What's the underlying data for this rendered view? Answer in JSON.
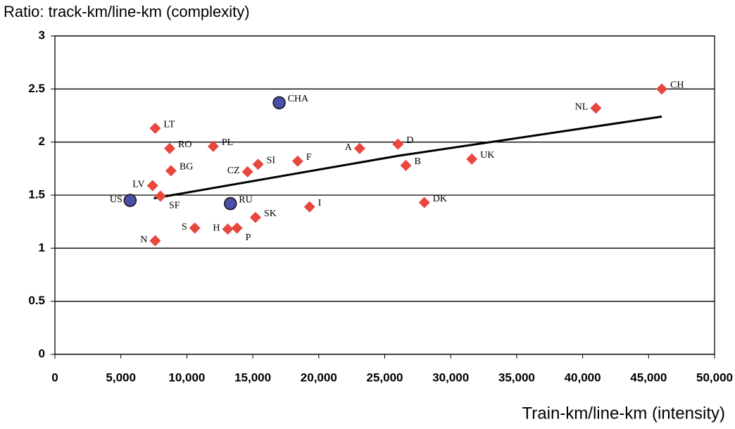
{
  "chart_data": {
    "type": "scatter",
    "title": "Ratio: track-km/line-km (complexity)",
    "x_label": "Train-km/line-km (intensity)",
    "xlim": [
      0,
      50000
    ],
    "ylim": [
      0,
      3
    ],
    "xticks": [
      0,
      {
        "value": 5000,
        "label": "5,000"
      },
      {
        "value": 10000,
        "label": "10,000"
      },
      {
        "value": 15000,
        "label": "15,000"
      },
      {
        "value": 20000,
        "label": "20,000"
      },
      {
        "value": 25000,
        "label": "25,000"
      },
      {
        "value": 30000,
        "label": "30,000"
      },
      {
        "value": 35000,
        "label": "35,000"
      },
      {
        "value": 40000,
        "label": "40,000"
      },
      {
        "value": 45000,
        "label": "45,000"
      },
      {
        "value": 50000,
        "label": "50,000"
      }
    ],
    "yticks": [
      0,
      0.5,
      1,
      1.5,
      2,
      2.5,
      3
    ],
    "grid": true,
    "series": [
      {
        "color": "#e8473f",
        "marker": "diamond",
        "labels": [
          "CH",
          "NL",
          "D",
          "A",
          "UK",
          "B",
          "DK",
          "I",
          "F",
          "SI",
          "CZ",
          "SK",
          "P",
          "H",
          "S",
          "PL",
          "RO",
          "BG",
          "LT",
          "LV",
          "SF",
          "N"
        ],
        "x": [
          46000,
          41000,
          26000,
          23100,
          31600,
          26600,
          28000,
          19300,
          18400,
          15400,
          14600,
          15200,
          13800,
          13100,
          10600,
          12000,
          8700,
          8800,
          7600,
          7400,
          8000,
          7600
        ],
        "values": [
          2.5,
          2.32,
          1.98,
          1.94,
          1.84,
          1.78,
          1.43,
          1.39,
          1.82,
          1.79,
          1.72,
          1.29,
          1.19,
          1.18,
          1.19,
          1.96,
          1.94,
          1.73,
          2.13,
          1.59,
          1.49,
          1.07
        ]
      },
      {
        "color": "#4a4fa8",
        "marker": "circle",
        "labels": [
          "US",
          "RU",
          "CHA"
        ],
        "x": [
          5700,
          13300,
          17000
        ],
        "values": [
          1.45,
          1.42,
          2.37
        ]
      }
    ],
    "trendline": {
      "color": "#000000",
      "x": [
        7500,
        26000,
        46000
      ],
      "values": [
        1.47,
        1.87,
        2.24
      ]
    }
  }
}
